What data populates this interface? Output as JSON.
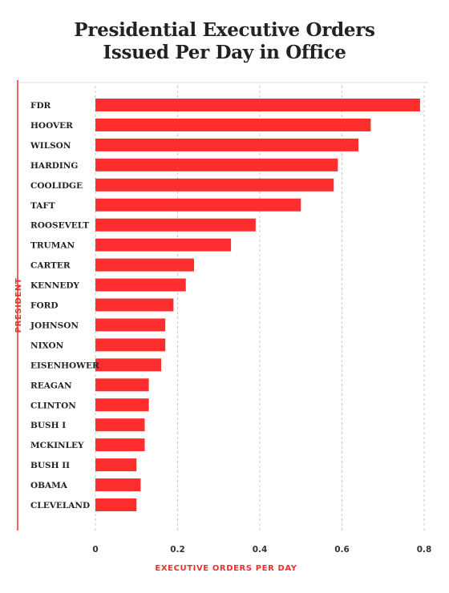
{
  "chart_data": {
    "type": "bar",
    "orientation": "horizontal",
    "title_line1": "Presidential Executive Orders",
    "title_line2": "Issued Per Day in Office",
    "xlabel": "EXECUTIVE ORDERS PER DAY",
    "ylabel": "PRESIDENT",
    "xlim": [
      0,
      0.8
    ],
    "xticks": [
      "0",
      "0.2",
      "0.4",
      "0.6",
      "0.8"
    ],
    "grid": true,
    "categories": [
      "FDR",
      "HOOVER",
      "WILSON",
      "HARDING",
      "COOLIDGE",
      "TAFT",
      "ROOSEVELT",
      "TRUMAN",
      "CARTER",
      "KENNEDY",
      "FORD",
      "JOHNSON",
      "NIXON",
      "EISENHOWER",
      "REAGAN",
      "CLINTON",
      "BUSH I",
      "MCKINLEY",
      "BUSH II",
      "OBAMA",
      "CLEVELAND"
    ],
    "values": [
      0.79,
      0.67,
      0.64,
      0.59,
      0.58,
      0.5,
      0.39,
      0.33,
      0.24,
      0.22,
      0.19,
      0.17,
      0.17,
      0.16,
      0.13,
      0.13,
      0.12,
      0.12,
      0.1,
      0.11,
      0.1
    ],
    "colors": {
      "bar": "#ff2e2e",
      "accent": "#e8322e",
      "grid": "#c8c8c8",
      "text": "#222222"
    }
  }
}
